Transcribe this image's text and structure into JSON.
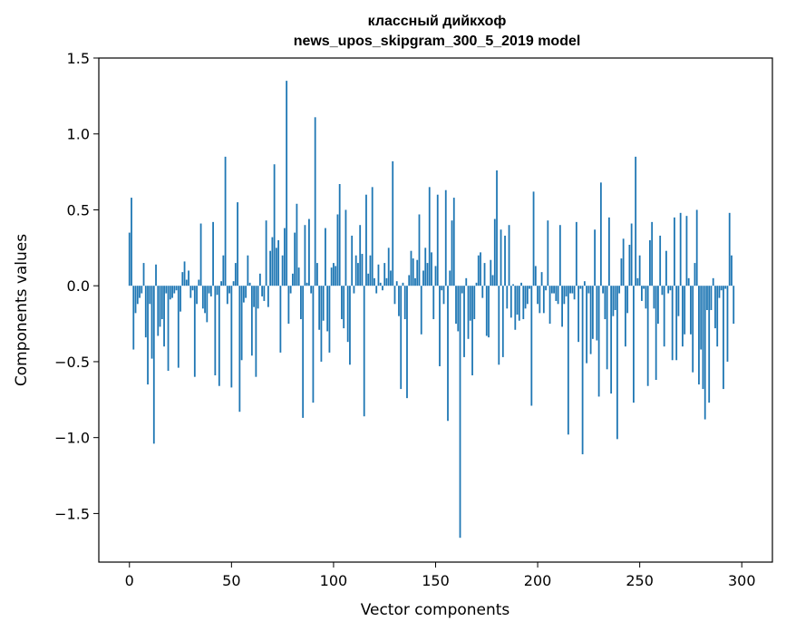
{
  "chart_data": {
    "type": "bar",
    "title": "классный дийкхоф",
    "subtitle": "news_upos_skipgram_300_5_2019 model",
    "xlabel": "Vector components",
    "ylabel": "Components values",
    "xlim": [
      -15,
      315
    ],
    "ylim": [
      -1.82,
      1.5
    ],
    "x_ticks": [
      0,
      50,
      100,
      150,
      200,
      250,
      300
    ],
    "x_tick_labels": [
      "0",
      "50",
      "100",
      "150",
      "200",
      "250",
      "300"
    ],
    "y_ticks": [
      1.5,
      1.0,
      0.5,
      0.0,
      -0.5,
      -1.0,
      -1.5
    ],
    "y_tick_labels": [
      "1.5",
      "1.0",
      "0.5",
      "0.0",
      "−0.5",
      "−1.0",
      "−1.5"
    ],
    "bar_color": "#1f77b4",
    "grid": false,
    "values": [
      0.35,
      0.58,
      -0.42,
      -0.18,
      -0.12,
      -0.08,
      -0.05,
      0.15,
      -0.34,
      -0.65,
      -0.12,
      -0.48,
      -1.04,
      0.14,
      -0.33,
      -0.27,
      -0.22,
      -0.4,
      -0.05,
      -0.56,
      -0.09,
      -0.08,
      -0.05,
      -0.03,
      -0.54,
      -0.17,
      0.09,
      0.16,
      0.04,
      0.1,
      -0.08,
      -0.03,
      -0.6,
      -0.12,
      0.04,
      0.41,
      -0.15,
      -0.18,
      -0.24,
      -0.05,
      -0.07,
      0.42,
      -0.59,
      -0.06,
      -0.66,
      0.03,
      0.2,
      0.85,
      -0.12,
      -0.05,
      -0.67,
      0.03,
      0.15,
      0.55,
      -0.83,
      -0.49,
      -0.11,
      -0.08,
      0.2,
      0.02,
      -0.46,
      -0.14,
      -0.6,
      -0.15,
      0.08,
      -0.07,
      -0.1,
      0.43,
      -0.14,
      0.23,
      0.32,
      0.8,
      0.25,
      0.3,
      -0.44,
      0.2,
      0.38,
      1.35,
      -0.25,
      -0.05,
      0.08,
      0.35,
      0.54,
      0.12,
      -0.22,
      -0.87,
      0.4,
      0.02,
      0.44,
      -0.05,
      -0.77,
      1.11,
      0.15,
      -0.29,
      -0.5,
      -0.23,
      0.38,
      -0.3,
      -0.44,
      0.12,
      0.15,
      0.13,
      0.47,
      0.67,
      -0.22,
      -0.28,
      0.5,
      -0.37,
      -0.52,
      0.33,
      -0.05,
      0.2,
      0.15,
      0.4,
      0.21,
      -0.86,
      0.6,
      0.08,
      0.2,
      0.65,
      0.05,
      -0.05,
      0.14,
      0.02,
      -0.03,
      0.15,
      0.05,
      0.25,
      0.1,
      0.82,
      -0.12,
      0.03,
      -0.2,
      -0.68,
      0.02,
      -0.22,
      -0.74,
      0.07,
      0.23,
      0.18,
      0.05,
      0.17,
      0.47,
      -0.32,
      0.1,
      0.25,
      0.15,
      0.65,
      0.22,
      -0.22,
      0.13,
      0.6,
      -0.53,
      -0.03,
      -0.12,
      0.63,
      -0.89,
      0.1,
      0.43,
      0.58,
      -0.25,
      -0.3,
      -1.66,
      -0.05,
      -0.47,
      0.05,
      -0.35,
      -0.23,
      -0.59,
      -0.22,
      0.02,
      0.2,
      0.22,
      -0.08,
      0.15,
      -0.33,
      -0.34,
      0.17,
      0.07,
      0.44,
      0.76,
      -0.52,
      0.37,
      -0.47,
      0.33,
      -0.15,
      0.4,
      -0.21,
      0.01,
      -0.29,
      -0.19,
      -0.23,
      0.02,
      -0.22,
      -0.15,
      -0.12,
      -0.02,
      -0.79,
      0.62,
      0.13,
      -0.12,
      -0.18,
      0.09,
      -0.18,
      -0.03,
      0.43,
      -0.25,
      -0.05,
      -0.05,
      -0.1,
      -0.12,
      0.4,
      -0.27,
      -0.12,
      -0.07,
      -0.98,
      -0.05,
      -0.05,
      -0.09,
      0.42,
      -0.37,
      -0.02,
      -1.11,
      0.03,
      -0.51,
      -0.05,
      -0.45,
      -0.35,
      0.37,
      -0.36,
      -0.73,
      0.68,
      -0.05,
      -0.22,
      -0.55,
      0.45,
      -0.71,
      -0.2,
      -0.16,
      -1.01,
      -0.05,
      0.18,
      0.31,
      -0.4,
      -0.18,
      0.27,
      0.41,
      -0.77,
      0.85,
      0.05,
      0.2,
      -0.1,
      -0.02,
      -0.15,
      -0.66,
      0.3,
      0.42,
      -0.15,
      -0.62,
      -0.25,
      0.33,
      -0.06,
      -0.4,
      0.23,
      -0.05,
      -0.03,
      -0.49,
      0.45,
      -0.49,
      -0.2,
      0.48,
      -0.4,
      -0.32,
      0.46,
      0.05,
      -0.32,
      -0.57,
      0.15,
      0.5,
      -0.65,
      -0.42,
      -0.68,
      -0.88,
      -0.16,
      -0.77,
      -0.16,
      0.05,
      -0.28,
      -0.4,
      -0.08,
      -0.03,
      -0.68,
      -0.02,
      -0.5,
      0.48,
      0.2,
      -0.25
    ]
  }
}
